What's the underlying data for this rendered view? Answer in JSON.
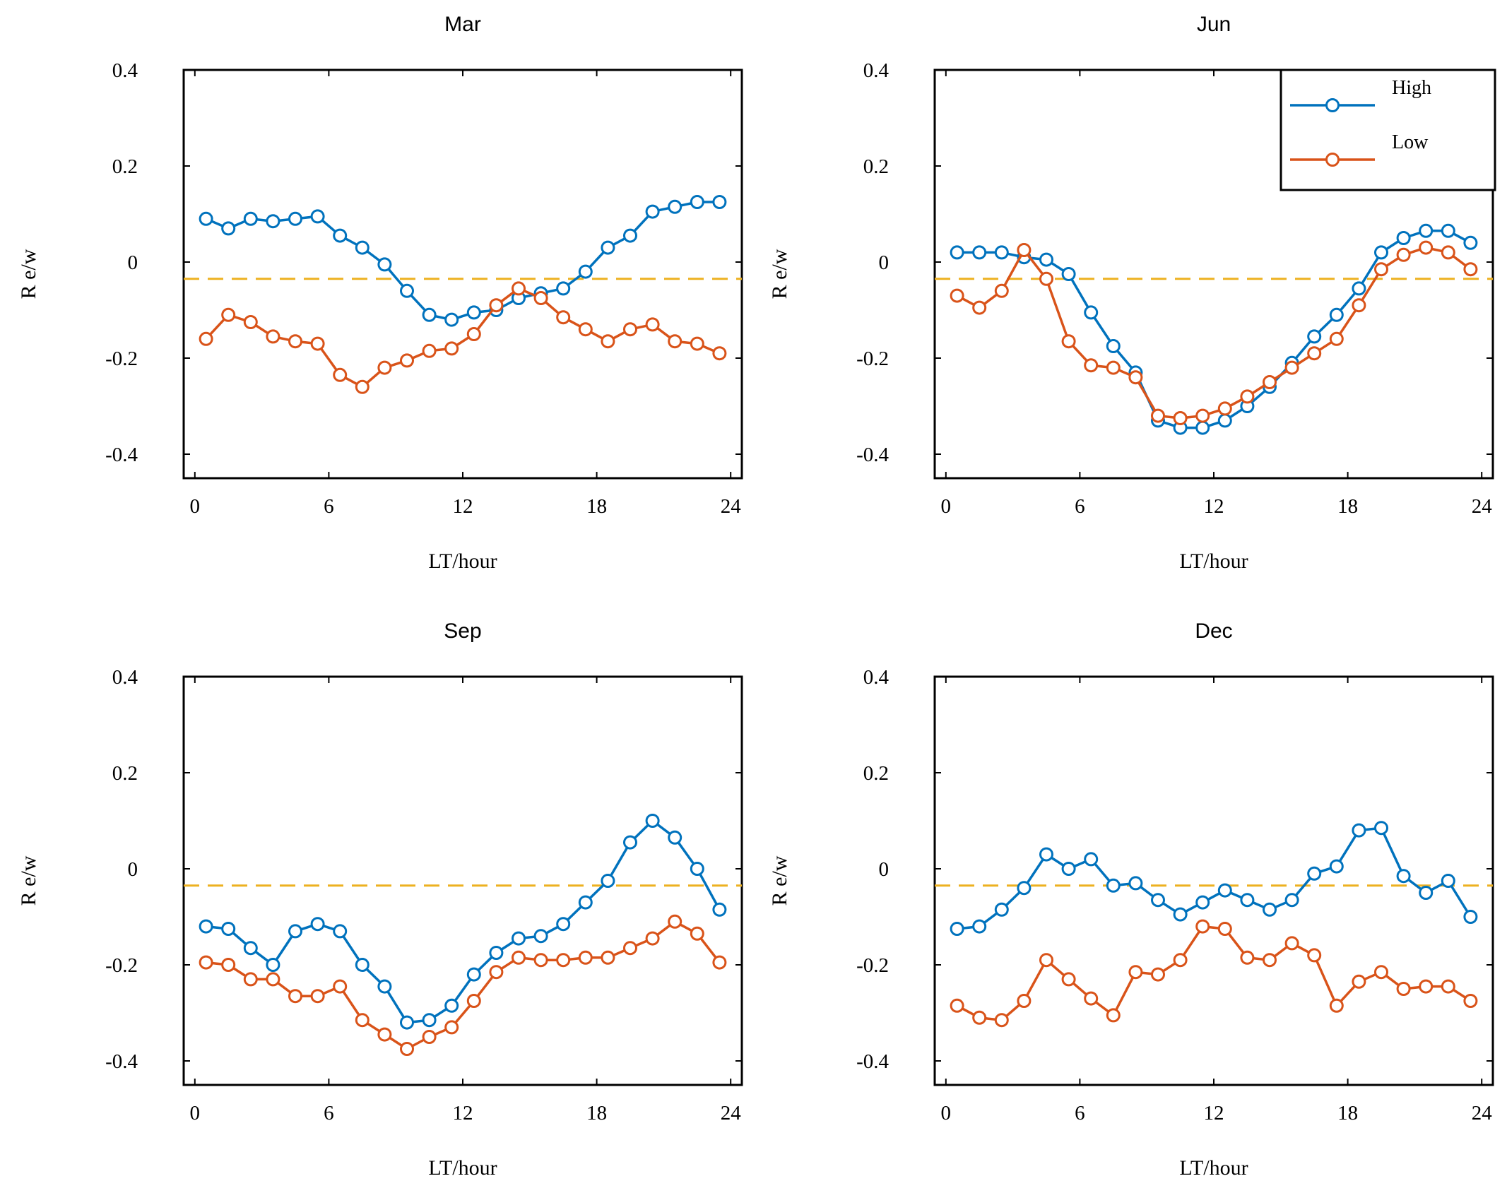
{
  "colors": {
    "high": "#0072BD",
    "low": "#D95319",
    "reference": "#EDB120",
    "axis": "#000000"
  },
  "legend": {
    "position": "top-right",
    "panel": 1,
    "entries": [
      "High",
      "Low"
    ]
  },
  "chart_data": [
    {
      "type": "line",
      "title": "Mar",
      "xlabel": "LT/hour",
      "ylabel": "R e/w",
      "xlim": [
        -0.5,
        24.5
      ],
      "ylim": [
        -0.45,
        0.4
      ],
      "xticks": [
        "0",
        "6",
        "12",
        "18",
        "24"
      ],
      "yticks": [
        "0.4",
        "0.2",
        "0",
        "-0.2",
        "-0.4"
      ],
      "reference_line": -0.035,
      "x": [
        0.5,
        1.5,
        2.5,
        3.5,
        4.5,
        5.5,
        6.5,
        7.5,
        8.5,
        9.5,
        10.5,
        11.5,
        12.5,
        13.5,
        14.5,
        15.5,
        16.5,
        17.5,
        18.5,
        19.5,
        20.5,
        21.5,
        22.5,
        23.5
      ],
      "series": [
        {
          "name": "High",
          "values": [
            0.09,
            0.07,
            0.09,
            0.085,
            0.09,
            0.095,
            0.055,
            0.03,
            -0.005,
            -0.06,
            -0.11,
            -0.12,
            -0.105,
            -0.1,
            -0.075,
            -0.065,
            -0.055,
            -0.02,
            0.03,
            0.055,
            0.105,
            0.115,
            0.125,
            0.125
          ]
        },
        {
          "name": "Low",
          "values": [
            -0.16,
            -0.11,
            -0.125,
            -0.155,
            -0.165,
            -0.17,
            -0.235,
            -0.26,
            -0.22,
            -0.205,
            -0.185,
            -0.18,
            -0.15,
            -0.09,
            -0.055,
            -0.075,
            -0.115,
            -0.14,
            -0.165,
            -0.14,
            -0.13,
            -0.165,
            -0.17,
            -0.19
          ]
        }
      ]
    },
    {
      "type": "line",
      "title": "Jun",
      "xlabel": "LT/hour",
      "ylabel": "R e/w",
      "xlim": [
        -0.5,
        24.5
      ],
      "ylim": [
        -0.45,
        0.4
      ],
      "xticks": [
        "0",
        "6",
        "12",
        "18",
        "24"
      ],
      "yticks": [
        "0.4",
        "0.2",
        "0",
        "-0.2",
        "-0.4"
      ],
      "reference_line": -0.035,
      "x": [
        0.5,
        1.5,
        2.5,
        3.5,
        4.5,
        5.5,
        6.5,
        7.5,
        8.5,
        9.5,
        10.5,
        11.5,
        12.5,
        13.5,
        14.5,
        15.5,
        16.5,
        17.5,
        18.5,
        19.5,
        20.5,
        21.5,
        22.5,
        23.5
      ],
      "series": [
        {
          "name": "High",
          "values": [
            0.02,
            0.02,
            0.02,
            0.01,
            0.005,
            -0.025,
            -0.105,
            -0.175,
            -0.23,
            -0.33,
            -0.345,
            -0.345,
            -0.33,
            -0.3,
            -0.26,
            -0.21,
            -0.155,
            -0.11,
            -0.055,
            0.02,
            0.05,
            0.065,
            0.065,
            0.04
          ]
        },
        {
          "name": "Low",
          "values": [
            -0.07,
            -0.095,
            -0.06,
            0.025,
            -0.035,
            -0.165,
            -0.215,
            -0.22,
            -0.24,
            -0.32,
            -0.325,
            -0.32,
            -0.305,
            -0.28,
            -0.25,
            -0.22,
            -0.19,
            -0.16,
            -0.09,
            -0.015,
            0.015,
            0.03,
            0.02,
            -0.015
          ]
        }
      ]
    },
    {
      "type": "line",
      "title": "Sep",
      "xlabel": "LT/hour",
      "ylabel": "R e/w",
      "xlim": [
        -0.5,
        24.5
      ],
      "ylim": [
        -0.45,
        0.4
      ],
      "xticks": [
        "0",
        "6",
        "12",
        "18",
        "24"
      ],
      "yticks": [
        "0.4",
        "0.2",
        "0",
        "-0.2",
        "-0.4"
      ],
      "reference_line": -0.035,
      "x": [
        0.5,
        1.5,
        2.5,
        3.5,
        4.5,
        5.5,
        6.5,
        7.5,
        8.5,
        9.5,
        10.5,
        11.5,
        12.5,
        13.5,
        14.5,
        15.5,
        16.5,
        17.5,
        18.5,
        19.5,
        20.5,
        21.5,
        22.5,
        23.5
      ],
      "series": [
        {
          "name": "High",
          "values": [
            -0.12,
            -0.125,
            -0.165,
            -0.2,
            -0.13,
            -0.115,
            -0.13,
            -0.2,
            -0.245,
            -0.32,
            -0.315,
            -0.285,
            -0.22,
            -0.175,
            -0.145,
            -0.14,
            -0.115,
            -0.07,
            -0.025,
            0.055,
            0.1,
            0.065,
            0,
            -0.085
          ]
        },
        {
          "name": "Low",
          "values": [
            -0.195,
            -0.2,
            -0.23,
            -0.23,
            -0.265,
            -0.265,
            -0.245,
            -0.315,
            -0.345,
            -0.375,
            -0.35,
            -0.33,
            -0.275,
            -0.215,
            -0.185,
            -0.19,
            -0.19,
            -0.185,
            -0.185,
            -0.165,
            -0.145,
            -0.11,
            -0.135,
            -0.195
          ]
        }
      ]
    },
    {
      "type": "line",
      "title": "Dec",
      "xlabel": "LT/hour",
      "ylabel": "R e/w",
      "xlim": [
        -0.5,
        24.5
      ],
      "ylim": [
        -0.45,
        0.4
      ],
      "xticks": [
        "0",
        "6",
        "12",
        "18",
        "24"
      ],
      "yticks": [
        "0.4",
        "0.2",
        "0",
        "-0.2",
        "-0.4"
      ],
      "reference_line": -0.035,
      "x": [
        0.5,
        1.5,
        2.5,
        3.5,
        4.5,
        5.5,
        6.5,
        7.5,
        8.5,
        9.5,
        10.5,
        11.5,
        12.5,
        13.5,
        14.5,
        15.5,
        16.5,
        17.5,
        18.5,
        19.5,
        20.5,
        21.5,
        22.5,
        23.5
      ],
      "series": [
        {
          "name": "High",
          "values": [
            -0.125,
            -0.12,
            -0.085,
            -0.04,
            0.03,
            0,
            0.02,
            -0.035,
            -0.03,
            -0.065,
            -0.095,
            -0.07,
            -0.045,
            -0.065,
            -0.085,
            -0.065,
            -0.01,
            0.005,
            0.08,
            0.085,
            -0.015,
            -0.05,
            -0.025,
            -0.1
          ]
        },
        {
          "name": "Low",
          "values": [
            -0.285,
            -0.31,
            -0.315,
            -0.275,
            -0.19,
            -0.23,
            -0.27,
            -0.305,
            -0.215,
            -0.22,
            -0.19,
            -0.12,
            -0.125,
            -0.185,
            -0.19,
            -0.155,
            -0.18,
            -0.285,
            -0.235,
            -0.215,
            -0.25,
            -0.245,
            -0.245,
            -0.275
          ]
        }
      ]
    }
  ]
}
